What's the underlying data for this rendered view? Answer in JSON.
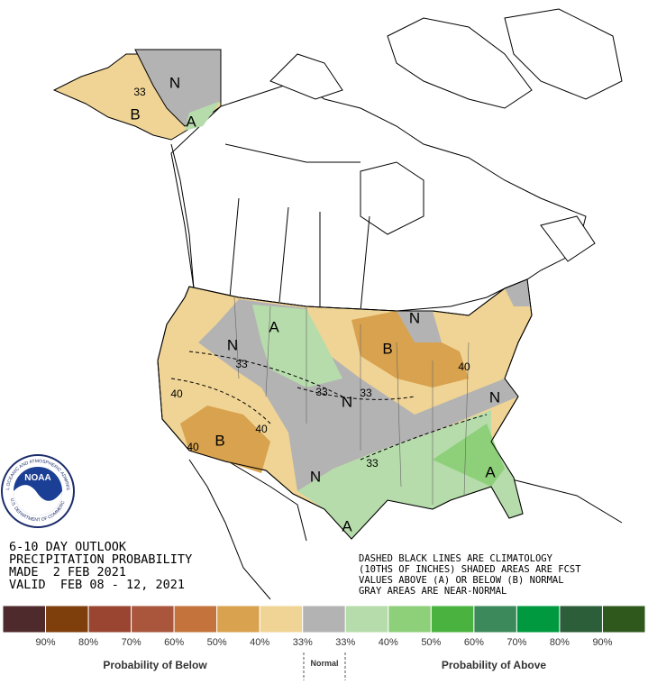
{
  "title_block": [
    "6-10 DAY OUTLOOK",
    "PRECIPITATION PROBABILITY",
    "MADE  2 FEB 2021",
    "VALID  FEB 08 - 12, 2021"
  ],
  "note_block": [
    "DASHED BLACK LINES ARE CLIMATOLOGY",
    "(10THS OF INCHES) SHADED AREAS ARE FCST",
    "VALUES ABOVE (A) OR BELOW (B) NORMAL",
    "GRAY AREAS ARE NEAR-NORMAL"
  ],
  "logo": {
    "name": "NOAA",
    "ring_top": "NATIONAL OCEANIC AND ATMOSPHERIC ADMINISTRATION",
    "ring_bottom": "U.S. DEPARTMENT OF COMMERCE"
  },
  "map_labels": [
    "N",
    "33",
    "B",
    "A",
    "A",
    "N",
    "33",
    "B",
    "40",
    "40",
    "33",
    "N",
    "33",
    "40",
    "B",
    "40",
    "N",
    "33",
    "A",
    "A",
    "N",
    "N"
  ],
  "legend": {
    "colors": [
      "#4f2a2c",
      "#7e3f0d",
      "#9a4532",
      "#a9563d",
      "#c3733b",
      "#d8a24f",
      "#f0d495",
      "#b3b3b3",
      "#b6dcab",
      "#8ecf7a",
      "#4ab23e",
      "#3c8a5b",
      "#00993f",
      "#2b5e39",
      "#2f591c"
    ],
    "labels": [
      "90%",
      "80%",
      "70%",
      "60%",
      "50%",
      "40%",
      "33%",
      "33%",
      "40%",
      "50%",
      "60%",
      "70%",
      "80%",
      "90%"
    ],
    "below_label": "Probability of Below",
    "normal_label": "Normal",
    "above_label": "Probability of Above"
  }
}
